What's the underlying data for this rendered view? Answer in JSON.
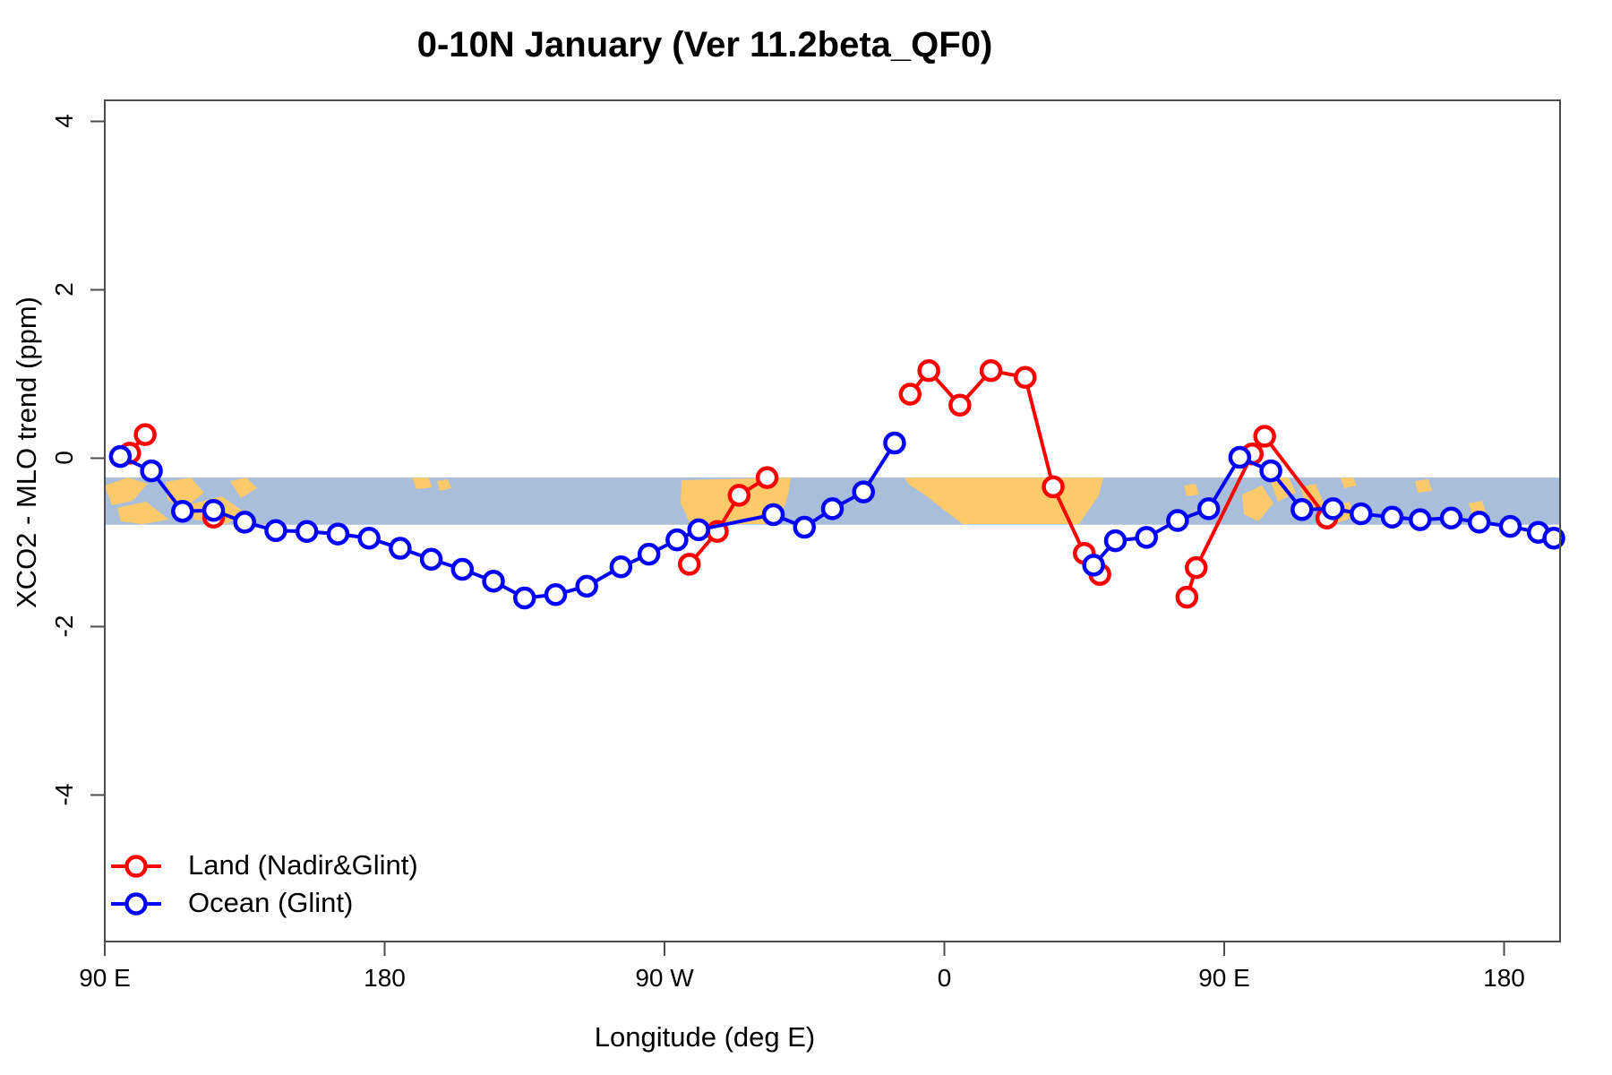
{
  "title": "0-10N January (Ver 11.2beta_QF0)",
  "chart_data": {
    "type": "line",
    "title": "0-10N January (Ver 11.2beta_QF0)",
    "xlabel": "Longitude (deg E)",
    "ylabel": "XCO2 - MLO trend (ppm)",
    "xlim": [
      90,
      558
    ],
    "ylim": [
      -5.74,
      4.25
    ],
    "grid": "off",
    "x_ticks": [
      {
        "value": 90,
        "label": "90 E"
      },
      {
        "value": 180,
        "label": "180"
      },
      {
        "value": 270,
        "label": "90 W"
      },
      {
        "value": 360,
        "label": "0"
      },
      {
        "value": 450,
        "label": "90 E"
      },
      {
        "value": 540,
        "label": "180"
      }
    ],
    "y_ticks": [
      {
        "value": 4,
        "label": "4"
      },
      {
        "value": 2,
        "label": "2"
      },
      {
        "value": 0,
        "label": "0"
      },
      {
        "value": -2,
        "label": "-2"
      },
      {
        "value": -4,
        "label": "-4"
      }
    ],
    "map_band": {
      "y_top": -0.23,
      "y_bottom": -0.79,
      "ocean_color": "#a9bedb",
      "land_color": "#fcc96b",
      "note": "world-map strip along longitude axis"
    },
    "series": [
      {
        "name": "Land (Nadir&Glint)",
        "color": "#ff0000",
        "marker": "open-circle",
        "segments": [
          [
            [
              98,
              0.06
            ],
            [
              103,
              0.28
            ]
          ],
          [
            [
              125,
              -0.7
            ]
          ],
          [
            [
              278,
              -1.26
            ],
            [
              287,
              -0.87
            ],
            [
              294,
              -0.44
            ],
            [
              303,
              -0.23
            ]
          ],
          [
            [
              349,
              0.76
            ],
            [
              355,
              1.04
            ],
            [
              365,
              0.63
            ],
            [
              375,
              1.04
            ],
            [
              386,
              0.96
            ],
            [
              395,
              -0.34
            ],
            [
              405,
              -1.13
            ],
            [
              410,
              -1.38
            ]
          ],
          [
            [
              438,
              -1.65
            ],
            [
              441,
              -1.3
            ],
            [
              459,
              0.05
            ],
            [
              463,
              0.26
            ],
            [
              483,
              -0.71
            ]
          ]
        ]
      },
      {
        "name": "Ocean (Glint)",
        "color": "#0000ff",
        "marker": "open-circle",
        "segments": [
          [
            [
              95,
              0.02
            ],
            [
              105,
              -0.15
            ],
            [
              115,
              -0.63
            ],
            [
              125,
              -0.62
            ],
            [
              135,
              -0.76
            ],
            [
              145,
              -0.86
            ],
            [
              155,
              -0.87
            ],
            [
              165,
              -0.9
            ],
            [
              175,
              -0.95
            ],
            [
              185,
              -1.07
            ],
            [
              195,
              -1.2
            ],
            [
              205,
              -1.32
            ],
            [
              215,
              -1.46
            ],
            [
              225,
              -1.66
            ],
            [
              235,
              -1.62
            ],
            [
              245,
              -1.52
            ],
            [
              256,
              -1.29
            ],
            [
              265,
              -1.14
            ],
            [
              274,
              -0.97
            ],
            [
              281,
              -0.85
            ],
            [
              305,
              -0.67
            ],
            [
              315,
              -0.82
            ],
            [
              324,
              -0.6
            ],
            [
              334,
              -0.4
            ],
            [
              344,
              0.18
            ]
          ],
          [
            [
              408,
              -1.27
            ],
            [
              415,
              -0.98
            ],
            [
              425,
              -0.94
            ],
            [
              435,
              -0.74
            ],
            [
              445,
              -0.6
            ],
            [
              455,
              0.01
            ],
            [
              465,
              -0.15
            ],
            [
              475,
              -0.61
            ],
            [
              485,
              -0.6
            ],
            [
              494,
              -0.66
            ],
            [
              504,
              -0.7
            ],
            [
              513,
              -0.73
            ],
            [
              523,
              -0.71
            ],
            [
              532,
              -0.76
            ],
            [
              542,
              -0.81
            ],
            [
              551,
              -0.88
            ],
            [
              556,
              -0.95
            ]
          ]
        ]
      }
    ],
    "legend": {
      "position": "bottom-left-inside",
      "items": [
        {
          "label": "Land (Nadir&Glint)",
          "color": "#ff0000"
        },
        {
          "label": "Ocean (Glint)",
          "color": "#0000ff"
        }
      ]
    }
  }
}
